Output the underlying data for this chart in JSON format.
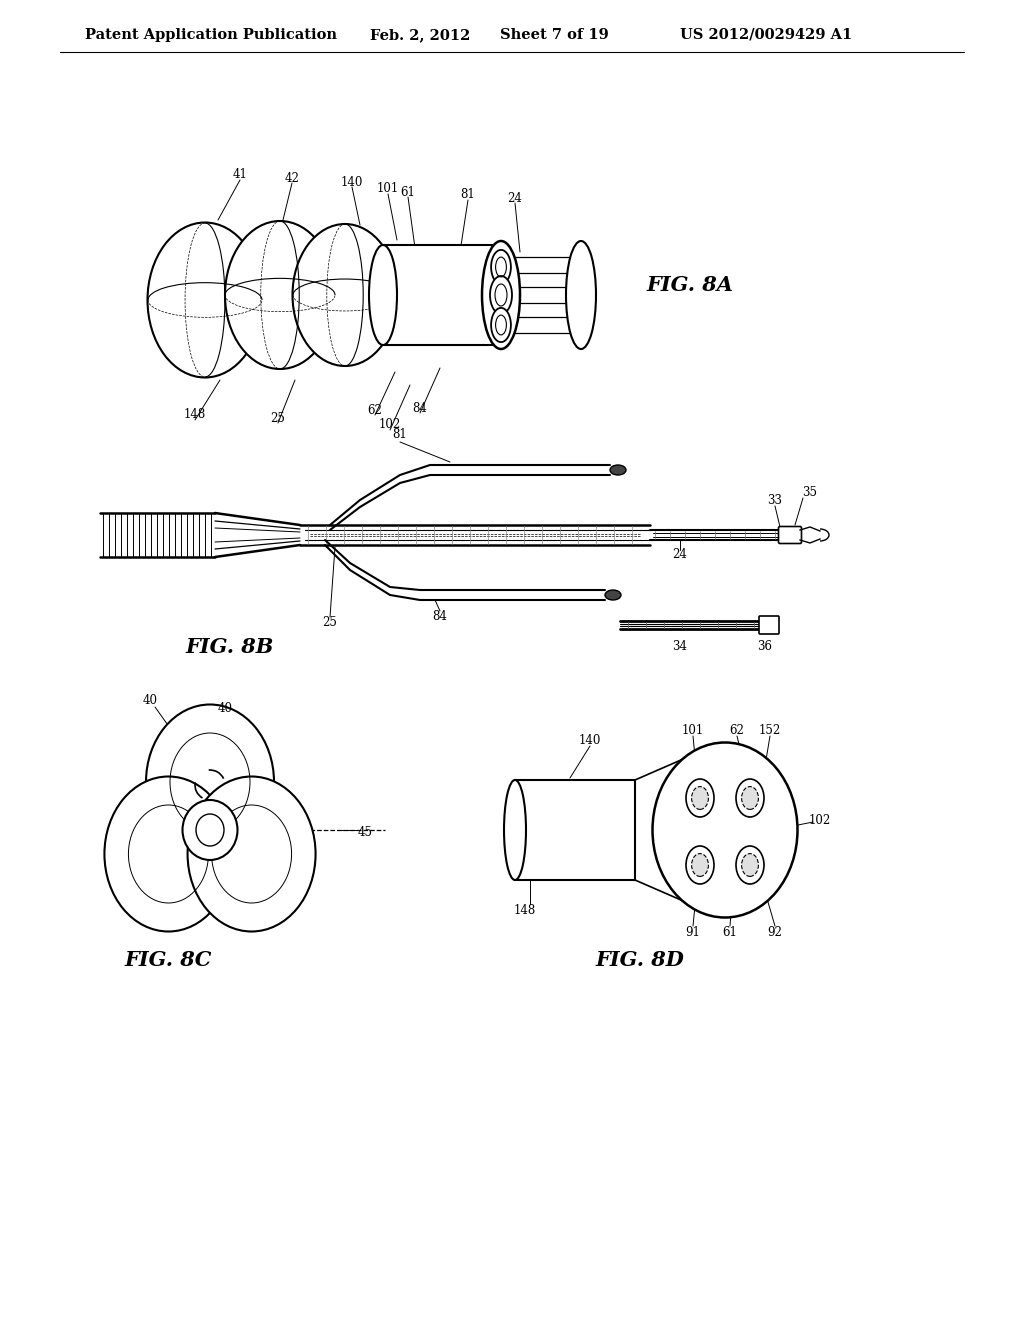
{
  "background_color": "#ffffff",
  "header_text": "Patent Application Publication",
  "header_date": "Feb. 2, 2012",
  "header_sheet": "Sheet 7 of 19",
  "header_patent": "US 2012/0029429 A1",
  "fig_8a_label": "FIG. 8A",
  "fig_8b_label": "FIG. 8B",
  "fig_8c_label": "FIG. 8C",
  "fig_8d_label": "FIG. 8D",
  "line_color": "#000000",
  "lw": 1.3,
  "title_fontsize": 10.5,
  "label_fontsize": 8.5,
  "fig_label_fontsize": 15
}
